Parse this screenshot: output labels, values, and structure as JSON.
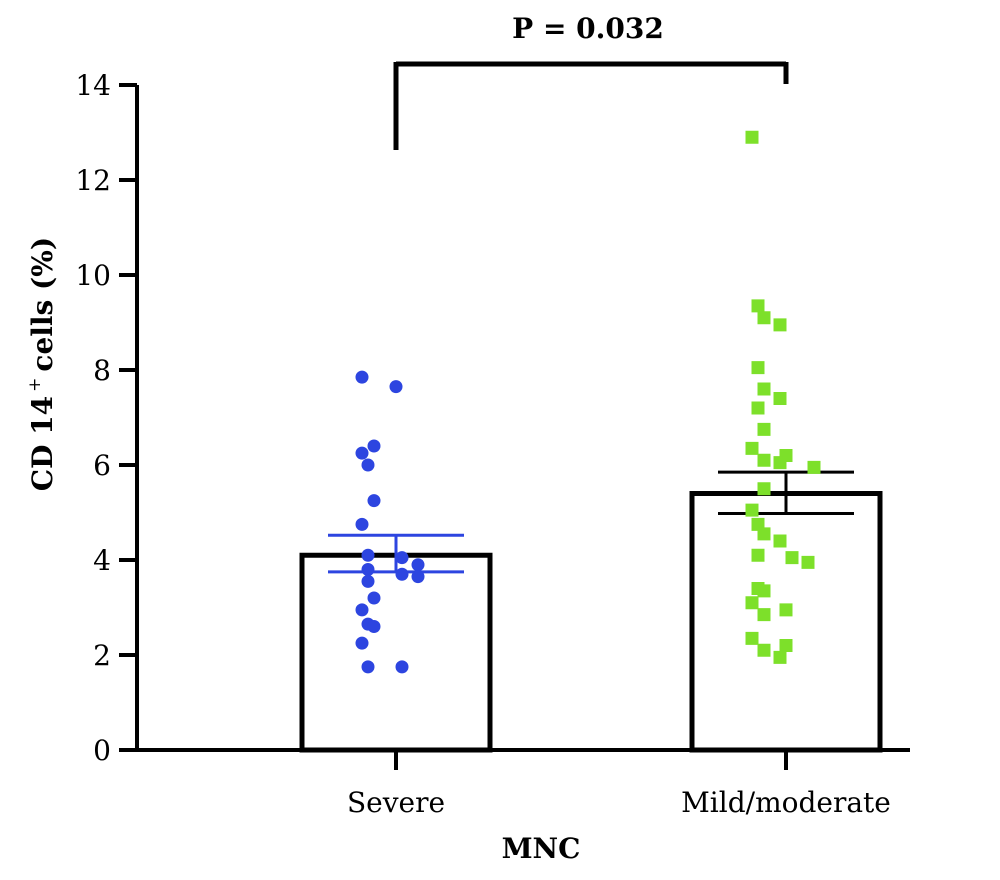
{
  "chart_data": {
    "type": "bar",
    "title": "",
    "xlabel": "MNC",
    "ylabel_main": "CD 14",
    "ylabel_sup": "+",
    "ylabel_tail": "cells (%)",
    "ylim": [
      0,
      14
    ],
    "yticks": [
      "0",
      "2",
      "4",
      "6",
      "8",
      "10",
      "12",
      "14"
    ],
    "categories": [
      "Severe",
      "Mild/moderate"
    ],
    "values": [
      4.1,
      5.4
    ],
    "error": [
      {
        "low": 3.75,
        "high": 4.52
      },
      {
        "low": 4.98,
        "high": 5.85
      }
    ],
    "significance": {
      "label": "P = 0.032",
      "between": [
        0,
        1
      ]
    },
    "points": [
      {
        "series": "Severe",
        "marker": "circle",
        "color": "#2d45e0",
        "values": [
          7.85,
          7.65,
          6.4,
          6.25,
          6.0,
          5.25,
          4.75,
          4.1,
          4.05,
          3.9,
          3.8,
          3.7,
          3.65,
          3.55,
          3.2,
          2.95,
          2.65,
          2.6,
          2.25,
          1.75,
          1.75
        ]
      },
      {
        "series": "Mild/moderate",
        "marker": "square",
        "color": "#7de02a",
        "values": [
          12.9,
          9.35,
          9.1,
          8.95,
          8.05,
          7.6,
          7.4,
          7.2,
          6.75,
          6.35,
          6.2,
          6.1,
          6.05,
          5.95,
          5.5,
          5.05,
          4.75,
          4.55,
          4.4,
          4.1,
          4.05,
          3.95,
          3.4,
          3.35,
          3.1,
          2.95,
          2.85,
          2.35,
          2.2,
          2.1,
          1.95
        ]
      }
    ]
  }
}
